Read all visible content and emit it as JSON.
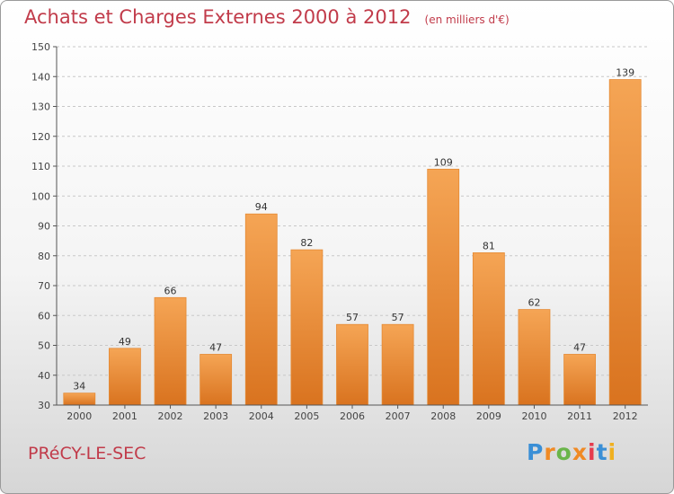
{
  "header": {
    "title": "Achats et Charges Externes 2000 à 2012",
    "subtitle": "(en milliers d'€)"
  },
  "footer": {
    "commune": "PRéCY-LE-SEC",
    "logo_text": "Proxiti",
    "logo_colors": [
      "#3a8fd6",
      "#f08a24",
      "#6ab54a",
      "#f08a24",
      "#e63c4e",
      "#3a8fd6",
      "#f0b020"
    ]
  },
  "chart_data": {
    "type": "bar",
    "title": "Achats et Charges Externes 2000 à 2012",
    "subtitle": "(en milliers d'€)",
    "xlabel": "",
    "ylabel": "",
    "categories": [
      "2000",
      "2001",
      "2002",
      "2003",
      "2004",
      "2005",
      "2006",
      "2007",
      "2008",
      "2009",
      "2010",
      "2011",
      "2012"
    ],
    "values": [
      34,
      49,
      66,
      47,
      94,
      82,
      57,
      57,
      109,
      81,
      62,
      47,
      139
    ],
    "ylim": [
      30,
      150
    ],
    "yticks": [
      30,
      40,
      50,
      60,
      70,
      80,
      90,
      100,
      110,
      120,
      130,
      140,
      150
    ],
    "grid": "horizontal-dashed",
    "bar_color_top": "#f5a555",
    "bar_color_bottom": "#d9731f"
  }
}
